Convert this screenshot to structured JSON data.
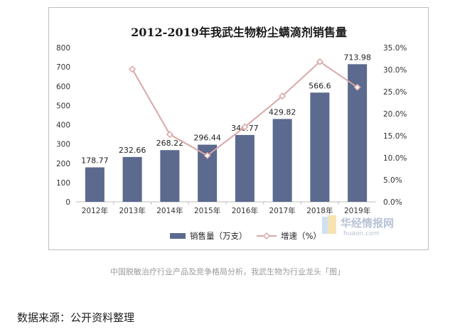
{
  "chart_data": {
    "type": "bar",
    "title": "2012-2019年我武生物粉尘螨滴剂销售量",
    "categories": [
      "2012年",
      "2013年",
      "2014年",
      "2015年",
      "2016年",
      "2017年",
      "2018年",
      "2019年"
    ],
    "series": [
      {
        "name": "销售量（万支）",
        "type": "bar",
        "axis": "left",
        "color": "#5b6a8e",
        "values": [
          178.77,
          232.66,
          268.22,
          296.44,
          346.77,
          429.82,
          566.6,
          713.98
        ],
        "labels": [
          "178.77",
          "232.66",
          "268.22",
          "296.44",
          "346.77",
          "429.82",
          "566.6",
          "713.98"
        ]
      },
      {
        "name": "增速（%）",
        "type": "line",
        "axis": "right",
        "color": "#d9a8a8",
        "values": [
          null,
          30.1,
          15.3,
          10.5,
          17.0,
          24.0,
          31.8,
          26.0
        ]
      }
    ],
    "y_left": {
      "min": 0,
      "max": 800,
      "ticks": [
        "0",
        "100",
        "200",
        "300",
        "400",
        "500",
        "600",
        "700",
        "800"
      ]
    },
    "y_right": {
      "min": 0,
      "max": 35,
      "ticks": [
        "0.0%",
        "5.0%",
        "10.0%",
        "15.0%",
        "20.0%",
        "25.0%",
        "30.0%",
        "35.0%"
      ]
    },
    "grid": false,
    "legend": "bottom"
  },
  "watermark": {
    "text": "华经情报网",
    "sub": "huaon.com"
  },
  "caption": "中国脱敏治疗行业产品及竞争格局分析，我武生物为行业龙头「图」",
  "source": "数据来源：公开资料整理"
}
